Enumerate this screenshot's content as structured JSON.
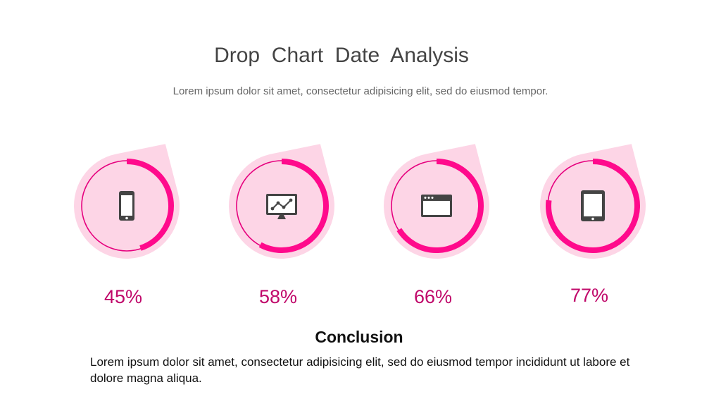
{
  "chart_data": {
    "type": "drop",
    "title": "Drop  Chart  Date  Analysis",
    "subtitle": "Lorem ipsum dolor sit amet, consectetur adipisicing elit, sed do eiusmod tempor.",
    "values": [
      45,
      58,
      66,
      77
    ],
    "value_labels": [
      "45%",
      "58%",
      "66%",
      "77%"
    ],
    "ylim": [
      0,
      100
    ],
    "color": "#ff0a8c"
  },
  "conclusion": {
    "title": "Conclusion",
    "text": "Lorem ipsum dolor sit amet, consectetur adipisicing elit, sed do eiusmod tempor incididunt ut labore et dolore magna aliqua."
  }
}
